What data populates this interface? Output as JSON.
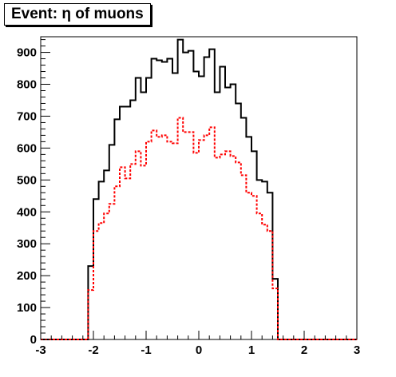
{
  "chart_data": {
    "type": "histogram",
    "title": "Event: η of muons",
    "xlabel": "",
    "ylabel": "",
    "xlim": [
      -3,
      3
    ],
    "ylim": [
      0,
      950
    ],
    "x_ticks": [
      -3,
      -2,
      -1,
      0,
      1,
      2,
      3
    ],
    "y_ticks": [
      0,
      100,
      200,
      300,
      400,
      500,
      600,
      700,
      800,
      900
    ],
    "bin_edges": [
      -3.0,
      -2.9,
      -2.8,
      -2.7,
      -2.6,
      -2.5,
      -2.4,
      -2.3,
      -2.2,
      -2.1,
      -2.0,
      -1.9,
      -1.8,
      -1.7,
      -1.6,
      -1.5,
      -1.4,
      -1.3,
      -1.2,
      -1.1,
      -1.0,
      -0.9,
      -0.8,
      -0.7,
      -0.6,
      -0.5,
      -0.4,
      -0.3,
      -0.2,
      -0.1,
      0.0,
      0.1,
      0.2,
      0.3,
      0.4,
      0.5,
      0.6,
      0.7,
      0.8,
      0.9,
      1.0,
      1.1,
      1.2,
      1.3,
      1.4,
      1.5,
      1.6,
      1.7,
      1.8,
      1.9,
      2.0,
      2.1,
      2.2,
      2.3,
      2.4,
      2.5,
      2.6,
      2.7,
      2.8,
      2.9,
      3.0
    ],
    "series": [
      {
        "color": "#000000",
        "style": "solid",
        "values": [
          0,
          0,
          0,
          0,
          0,
          0,
          0,
          0,
          0,
          230,
          440,
          495,
          530,
          610,
          690,
          730,
          730,
          750,
          820,
          775,
          820,
          880,
          875,
          870,
          880,
          835,
          940,
          900,
          905,
          840,
          825,
          885,
          910,
          775,
          855,
          790,
          800,
          740,
          695,
          635,
          590,
          500,
          495,
          460,
          190,
          0,
          0,
          0,
          0,
          0,
          0,
          0,
          0,
          0,
          0,
          0,
          0,
          0,
          0,
          0
        ]
      },
      {
        "color": "#ff0000",
        "style": "dashed",
        "values": [
          0,
          0,
          0,
          0,
          0,
          0,
          0,
          0,
          0,
          155,
          340,
          365,
          395,
          425,
          480,
          540,
          505,
          550,
          590,
          545,
          620,
          655,
          635,
          640,
          620,
          615,
          695,
          650,
          650,
          585,
          625,
          640,
          665,
          570,
          580,
          590,
          575,
          555,
          515,
          460,
          450,
          395,
          360,
          340,
          160,
          0,
          0,
          0,
          0,
          0,
          0,
          0,
          0,
          0,
          0,
          0,
          0,
          0,
          0,
          0
        ]
      }
    ],
    "grid": false,
    "legend": "none"
  }
}
